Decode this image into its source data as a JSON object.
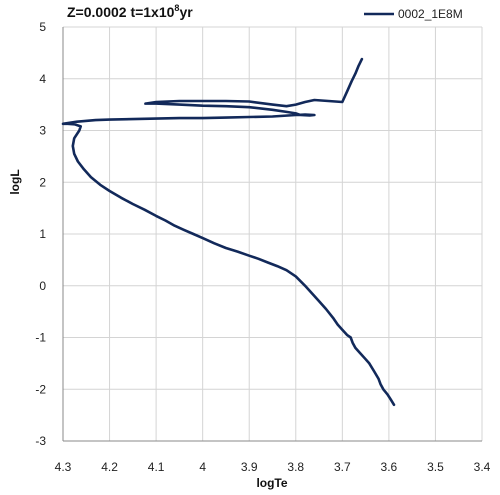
{
  "chart_data": {
    "type": "line",
    "title_main": "Z=0.0002 t=1x10",
    "title_sup": "8",
    "title_end": "yr",
    "xlabel": "logTe",
    "ylabel": "logL",
    "xlim": [
      4.3,
      3.4
    ],
    "ylim": [
      -3,
      5
    ],
    "x_reversed": true,
    "grid": true,
    "legend_position": "top-right",
    "xticks": [
      "4.3",
      "4.2",
      "4.1",
      "4",
      "3.9",
      "3.8",
      "3.7",
      "3.6",
      "3.5",
      "3.4"
    ],
    "yticks": [
      "5",
      "4",
      "3",
      "2",
      "1",
      "0",
      "-1",
      "-2",
      "-3"
    ],
    "colors": {
      "series": "#12295a",
      "grid": "#d4d4d4",
      "axis": "#888888"
    },
    "series": [
      {
        "name": "0002_1E8M",
        "x": [
          3.589,
          3.596,
          3.603,
          3.612,
          3.618,
          3.622,
          3.632,
          3.642,
          3.652,
          3.662,
          3.672,
          3.678,
          3.682,
          3.69,
          3.7,
          3.71,
          3.72,
          3.735,
          3.75,
          3.765,
          3.78,
          3.8,
          3.82,
          3.84,
          3.86,
          3.88,
          3.9,
          3.925,
          3.95,
          3.975,
          4.0,
          4.02,
          4.04,
          4.06,
          4.08,
          4.1,
          4.125,
          4.15,
          4.175,
          4.2,
          4.22,
          4.24,
          4.255,
          4.268,
          4.276,
          4.279,
          4.276,
          4.265,
          4.262,
          4.275,
          4.29,
          4.3,
          4.27,
          4.23,
          4.2,
          4.15,
          4.1,
          4.05,
          4.0,
          3.95,
          3.9,
          3.85,
          3.8,
          3.78,
          3.76,
          3.77,
          3.79,
          3.8,
          3.82,
          3.85,
          3.9,
          3.95,
          4.0,
          4.05,
          4.1,
          4.123,
          4.1,
          4.05,
          4.0,
          3.95,
          3.9,
          3.85,
          3.82,
          3.8,
          3.78,
          3.76,
          3.73,
          3.7,
          3.69,
          3.68,
          3.672,
          3.665,
          3.658
        ],
        "y": [
          -2.3,
          -2.2,
          -2.1,
          -2.0,
          -1.9,
          -1.8,
          -1.65,
          -1.5,
          -1.4,
          -1.3,
          -1.2,
          -1.1,
          -1.0,
          -0.95,
          -0.85,
          -0.75,
          -0.62,
          -0.45,
          -0.3,
          -0.15,
          0.0,
          0.18,
          0.3,
          0.38,
          0.45,
          0.52,
          0.58,
          0.66,
          0.73,
          0.82,
          0.92,
          1.0,
          1.08,
          1.16,
          1.26,
          1.35,
          1.47,
          1.58,
          1.7,
          1.83,
          1.95,
          2.1,
          2.25,
          2.4,
          2.55,
          2.7,
          2.85,
          3.0,
          3.08,
          3.12,
          3.13,
          3.13,
          3.17,
          3.2,
          3.21,
          3.22,
          3.23,
          3.24,
          3.24,
          3.25,
          3.26,
          3.27,
          3.3,
          3.31,
          3.3,
          3.29,
          3.3,
          3.33,
          3.36,
          3.4,
          3.45,
          3.47,
          3.48,
          3.5,
          3.52,
          3.52,
          3.55,
          3.57,
          3.57,
          3.57,
          3.56,
          3.5,
          3.47,
          3.5,
          3.55,
          3.59,
          3.57,
          3.55,
          3.75,
          3.95,
          4.1,
          4.25,
          4.38
        ]
      }
    ]
  }
}
